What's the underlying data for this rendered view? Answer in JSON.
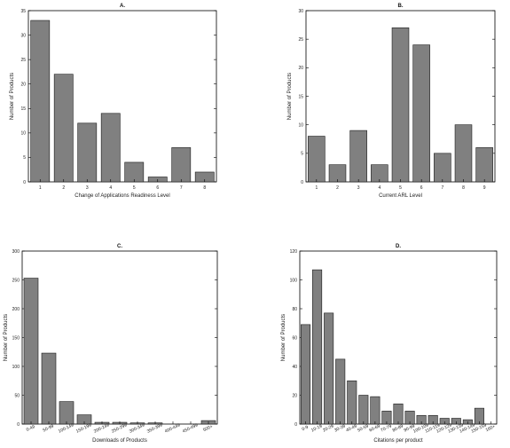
{
  "chart_data": [
    {
      "type": "bar",
      "title": "A.",
      "xlabel": "Change of Applications Readiness Level",
      "ylabel": "Number of Products",
      "categories": [
        "1",
        "2",
        "3",
        "4",
        "5",
        "6",
        "7",
        "8"
      ],
      "values": [
        33,
        22,
        12,
        14,
        4,
        1,
        7,
        2
      ],
      "ylim": [
        0,
        35
      ],
      "yticks": [
        "0",
        "5",
        "10",
        "15",
        "20",
        "25",
        "30",
        "35"
      ],
      "grid": false
    },
    {
      "type": "bar",
      "title": "B.",
      "xlabel": "Current ARL Level",
      "ylabel": "Number of Products",
      "categories": [
        "1",
        "2",
        "3",
        "4",
        "5",
        "6",
        "7",
        "8",
        "9"
      ],
      "values": [
        8,
        3,
        9,
        3,
        27,
        24,
        5,
        10,
        6
      ],
      "ylim": [
        0,
        30
      ],
      "yticks": [
        "0",
        "5",
        "10",
        "15",
        "20",
        "25",
        "30"
      ],
      "grid": false
    },
    {
      "type": "bar",
      "title": "C.",
      "xlabel": "Downloads of Products",
      "ylabel": "Number of Products",
      "categories": [
        "0-49",
        "50-99",
        "100-149",
        "150-199",
        "200-249",
        "250-299",
        "300-349",
        "350-399",
        "400-449",
        "450-499",
        "500+"
      ],
      "values": [
        253,
        123,
        39,
        16,
        3,
        3,
        2,
        2,
        0,
        0,
        6
      ],
      "ylim": [
        0,
        300
      ],
      "yticks": [
        "0",
        "50",
        "100",
        "150",
        "200",
        "250",
        "300"
      ],
      "grid": false
    },
    {
      "type": "bar",
      "title": "D.",
      "xlabel": "Citations per product",
      "ylabel": "Number of Products",
      "categories": [
        "0-9",
        "10-19",
        "20-29",
        "30-39",
        "40-49",
        "50-59",
        "60-69",
        "70-79",
        "80-89",
        "90-99",
        "100-109",
        "110-119",
        "120-129",
        "130-139",
        "140-149",
        "150-159",
        "160+"
      ],
      "values": [
        69,
        107,
        77,
        45,
        30,
        20,
        19,
        9,
        14,
        9,
        6,
        6,
        4,
        4,
        3,
        11,
        0
      ],
      "ylim": [
        0,
        120
      ],
      "yticks": [
        "0",
        "20",
        "40",
        "60",
        "80",
        "100",
        "120"
      ],
      "grid": false
    }
  ]
}
